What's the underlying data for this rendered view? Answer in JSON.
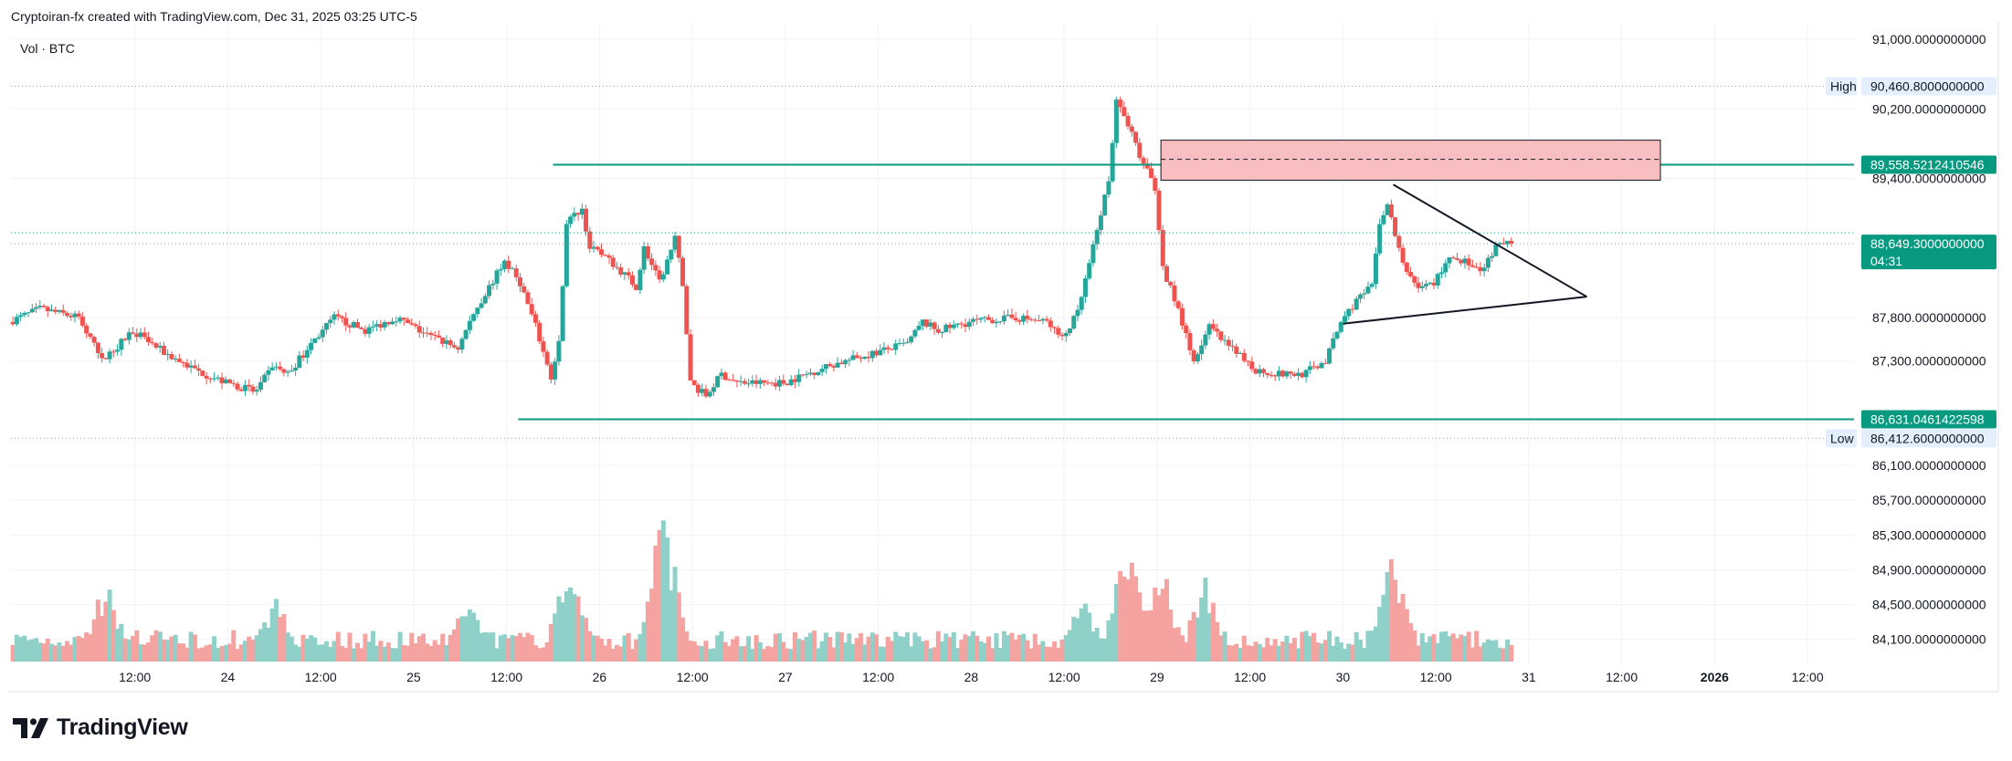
{
  "header": {
    "credit": "Cryptoiran-fx created with TradingView.com, Dec 31, 2025 03:25 UTC-5"
  },
  "legend": {
    "text": "Vol · BTC"
  },
  "brand": {
    "name": "TradingView",
    "logo_icon": "tradingview-logo-icon"
  },
  "colors": {
    "up": "#26a69a",
    "down": "#ef5350",
    "up_vol": "#8fd1c9",
    "down_vol": "#f5a3a1",
    "line": "#089981",
    "zone": "#f8bec1",
    "tag": "#089981"
  },
  "chart_data": {
    "type": "candlestick",
    "symbol": "BTC",
    "ylim": [
      83950,
      91200
    ],
    "price_ticks": [
      "91,000.0000000000",
      "90,200.0000000000",
      "89,400.0000000000",
      "87,800.0000000000",
      "87,300.0000000000",
      "86,100.0000000000",
      "85,700.0000000000",
      "85,300.0000000000",
      "84,900.0000000000",
      "84,500.0000000000",
      "84,100.0000000000"
    ],
    "price_tick_values": [
      91000,
      90200,
      89400,
      87800,
      87300,
      86100,
      85700,
      85300,
      84900,
      84500,
      84100
    ],
    "time_ticks": [
      "12:00",
      "24",
      "12:00",
      "25",
      "12:00",
      "26",
      "12:00",
      "27",
      "12:00",
      "28",
      "12:00",
      "29",
      "12:00",
      "30",
      "12:00",
      "31",
      "12:00",
      "2026",
      "12:00"
    ],
    "time_tick_hours": [
      12,
      24,
      36,
      48,
      60,
      72,
      84,
      96,
      108,
      120,
      132,
      144,
      156,
      168,
      180,
      192,
      204,
      216,
      228
    ],
    "x_range_hours": [
      -4,
      234
    ],
    "last_data_hour": 189.5,
    "high": {
      "label": "High",
      "value": "90,460.8000000000",
      "price": 90460.8
    },
    "low": {
      "label": "Low",
      "value": "86,412.6000000000",
      "price": 86412.6
    },
    "current": {
      "value": "88,649.3000000000",
      "countdown": "04:31",
      "price": 88649.3
    },
    "resistance": {
      "value": "89,558.5212410546",
      "price": 89558.52,
      "from_hour": 66
    },
    "support": {
      "value": "86,631.0461422598",
      "price": 86631.05,
      "from_hour": 61.5
    },
    "zone": {
      "from_hour": 144.5,
      "to_hour": 209,
      "top": 89840,
      "bottom": 89380,
      "mid": 89620
    },
    "triangle": {
      "upper": {
        "from": [
          174.5,
          89330
        ],
        "to": [
          199.5,
          88040
        ]
      },
      "lower": {
        "from": [
          168,
          87730
        ],
        "to": [
          199.5,
          88040
        ]
      }
    },
    "price_path": [
      [
        -4,
        87750
      ],
      [
        0,
        87900
      ],
      [
        5,
        87800
      ],
      [
        8,
        87300
      ],
      [
        12,
        87650
      ],
      [
        16,
        87400
      ],
      [
        20,
        87200
      ],
      [
        24,
        87050
      ],
      [
        28,
        86950
      ],
      [
        30,
        87250
      ],
      [
        32,
        87150
      ],
      [
        35,
        87500
      ],
      [
        38,
        87800
      ],
      [
        42,
        87650
      ],
      [
        46,
        87800
      ],
      [
        50,
        87600
      ],
      [
        54,
        87450
      ],
      [
        56,
        87850
      ],
      [
        60,
        88450
      ],
      [
        62,
        88200
      ],
      [
        64,
        87700
      ],
      [
        66,
        87100
      ],
      [
        67,
        87500
      ],
      [
        68,
        88900
      ],
      [
        70,
        89050
      ],
      [
        71,
        88600
      ],
      [
        73,
        88500
      ],
      [
        76,
        88250
      ],
      [
        77,
        88150
      ],
      [
        78,
        88600
      ],
      [
        80,
        88200
      ],
      [
        82,
        88700
      ],
      [
        83,
        88200
      ],
      [
        84,
        87050
      ],
      [
        86,
        86900
      ],
      [
        88,
        87150
      ],
      [
        90,
        87050
      ],
      [
        96,
        87050
      ],
      [
        102,
        87250
      ],
      [
        108,
        87400
      ],
      [
        112,
        87500
      ],
      [
        114,
        87750
      ],
      [
        116,
        87650
      ],
      [
        120,
        87750
      ],
      [
        126,
        87800
      ],
      [
        130,
        87750
      ],
      [
        132,
        87550
      ],
      [
        134,
        87850
      ],
      [
        136,
        88600
      ],
      [
        138,
        89400
      ],
      [
        139,
        90300
      ],
      [
        140,
        90150
      ],
      [
        142,
        89650
      ],
      [
        144,
        89300
      ],
      [
        145,
        88350
      ],
      [
        147,
        87900
      ],
      [
        149,
        87300
      ],
      [
        151,
        87700
      ],
      [
        153,
        87500
      ],
      [
        155,
        87350
      ],
      [
        157,
        87200
      ],
      [
        160,
        87150
      ],
      [
        163,
        87150
      ],
      [
        166,
        87300
      ],
      [
        168,
        87750
      ],
      [
        170,
        88000
      ],
      [
        172,
        88150
      ],
      [
        173,
        88900
      ],
      [
        174,
        89100
      ],
      [
        176,
        88400
      ],
      [
        178,
        88150
      ],
      [
        180,
        88200
      ],
      [
        182,
        88500
      ],
      [
        184,
        88450
      ],
      [
        186,
        88300
      ],
      [
        188,
        88600
      ],
      [
        189.5,
        88650
      ]
    ],
    "volume_events": [
      [
        8,
        0.55
      ],
      [
        30,
        0.42
      ],
      [
        55,
        0.45
      ],
      [
        68,
        0.78
      ],
      [
        80,
        1.0
      ],
      [
        134,
        0.45
      ],
      [
        140,
        0.82
      ],
      [
        144,
        0.7
      ],
      [
        150,
        0.55
      ],
      [
        174,
        0.7
      ]
    ]
  }
}
